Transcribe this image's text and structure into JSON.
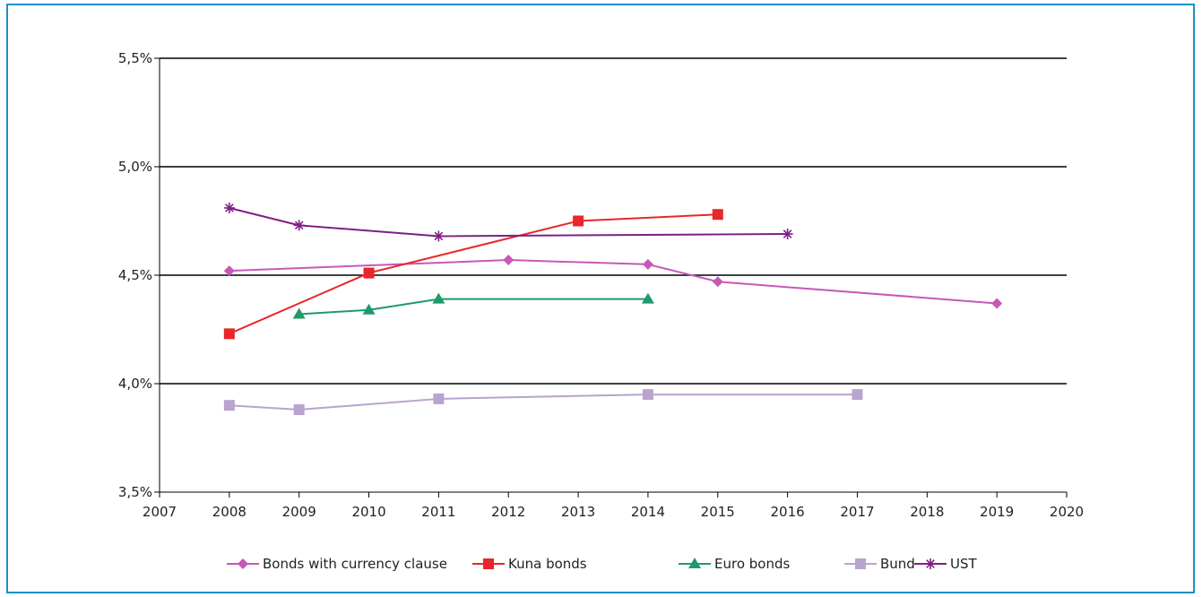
{
  "chart_data": {
    "type": "line",
    "title": "",
    "xlabel": "",
    "ylabel": "",
    "xlim": [
      2007,
      2020
    ],
    "ylim": [
      3.5,
      5.5
    ],
    "x_ticks": [
      2007,
      2008,
      2009,
      2010,
      2011,
      2012,
      2013,
      2014,
      2015,
      2016,
      2017,
      2018,
      2019,
      2020
    ],
    "x_tick_labels": [
      "2007",
      "2008",
      "2009",
      "2010",
      "2011",
      "2012",
      "2013",
      "2014",
      "2015",
      "2016",
      "2017",
      "2018",
      "2019",
      "2020"
    ],
    "y_ticks": [
      3.5,
      4.0,
      4.5,
      5.0,
      5.5
    ],
    "y_tick_labels": [
      "3,5%",
      "4,0%",
      "4,5%",
      "5,0%",
      "5,5%"
    ],
    "grid": "horizontal",
    "legend_position": "bottom",
    "series": [
      {
        "name": "Bonds with  currency clause",
        "color": "#c55ab5",
        "marker": "diamond",
        "points": [
          [
            2008,
            4.52
          ],
          [
            2012,
            4.57
          ],
          [
            2014,
            4.55
          ],
          [
            2015,
            4.47
          ],
          [
            2019,
            4.37
          ]
        ]
      },
      {
        "name": "Kuna bonds",
        "color": "#e8262c",
        "marker": "square",
        "points": [
          [
            2008,
            4.23
          ],
          [
            2010,
            4.51
          ],
          [
            2013,
            4.75
          ],
          [
            2015,
            4.78
          ]
        ]
      },
      {
        "name": "Euro bonds",
        "color": "#1f9a6a",
        "marker": "triangle",
        "points": [
          [
            2009,
            4.32
          ],
          [
            2010,
            4.34
          ],
          [
            2011,
            4.39
          ],
          [
            2014,
            4.39
          ]
        ]
      },
      {
        "name": "Bund",
        "color": "#b9a3cf",
        "marker": "square",
        "points": [
          [
            2008,
            3.9
          ],
          [
            2009,
            3.88
          ],
          [
            2011,
            3.93
          ],
          [
            2014,
            3.95
          ],
          [
            2017,
            3.95
          ]
        ]
      },
      {
        "name": "UST",
        "color": "#7e1f86",
        "marker": "asterisk",
        "points": [
          [
            2008,
            4.81
          ],
          [
            2009,
            4.73
          ],
          [
            2011,
            4.68
          ],
          [
            2016,
            4.69
          ]
        ]
      }
    ]
  }
}
